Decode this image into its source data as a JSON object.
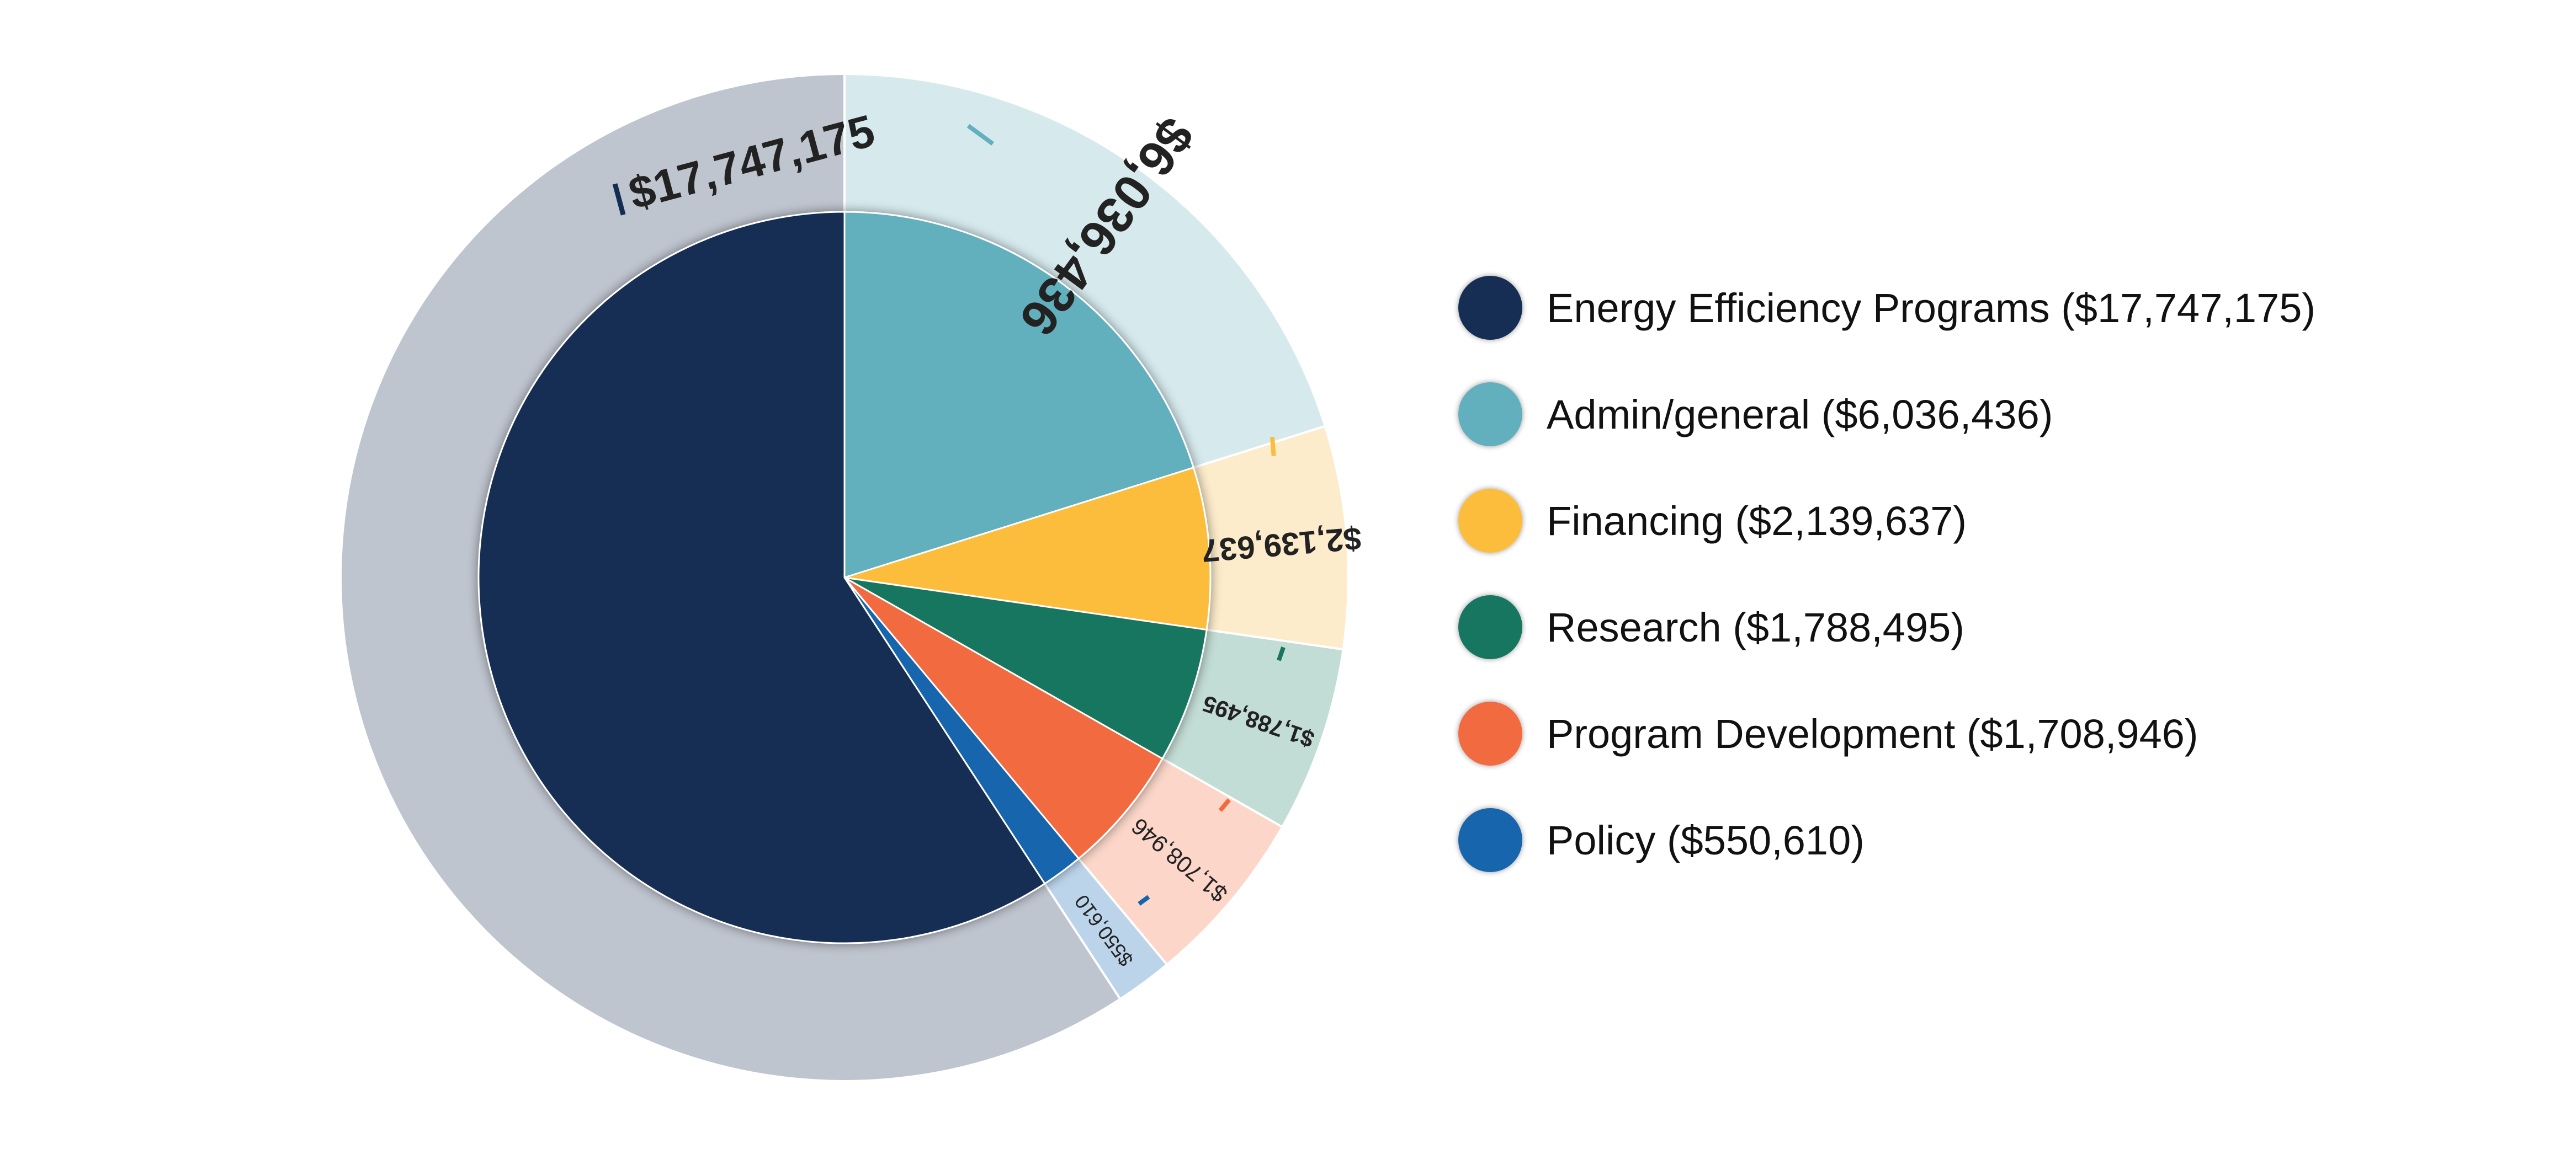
{
  "chart_data": {
    "type": "pie",
    "title": "",
    "currency": "USD",
    "series": [
      {
        "name": "Energy Efficiency Programs",
        "value": 17747175,
        "value_label": "$17,747,175",
        "legend": "Energy Efficiency Programs ($17,747,175)",
        "color": "#142d52",
        "ring_color": "#bfc5cf"
      },
      {
        "name": "Admin/general",
        "value": 6036436,
        "value_label": "$6,036,436",
        "legend": "Admin/general ($6,036,436)",
        "color": "#62b0bd",
        "ring_color": "#d6eaee"
      },
      {
        "name": "Financing",
        "value": 2139637,
        "value_label": "$2,139,637",
        "legend": "Financing ($2,139,637)",
        "color": "#fcbd3e",
        "ring_color": "#fdeccb"
      },
      {
        "name": "Research",
        "value": 1788495,
        "value_label": "$1,788,495",
        "legend": "Research ($1,788,495)",
        "color": "#18765e",
        "ring_color": "#c2ddd5"
      },
      {
        "name": "Program Development",
        "value": 1708946,
        "value_label": "$1,708,946",
        "legend": "Program Development ($1,708,946)",
        "color": "#f26b3f",
        "ring_color": "#fbd6c9"
      },
      {
        "name": "Policy",
        "value": 550610,
        "value_label": "$550,610",
        "legend": "Policy ($550,610)",
        "color": "#1565ad",
        "ring_color": "#bcd4ea"
      }
    ],
    "legend_position": "right"
  }
}
